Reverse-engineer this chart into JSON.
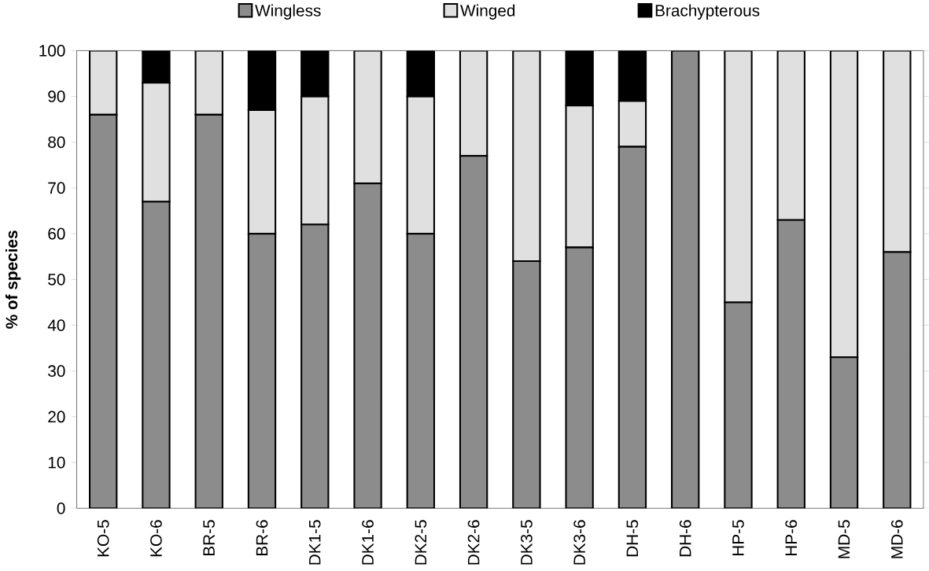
{
  "chart_data": {
    "type": "bar",
    "stacked": true,
    "ylabel": "% of species",
    "categories": [
      "KO-5",
      "KO-6",
      "BR-5",
      "BR-6",
      "DK1-5",
      "DK1-6",
      "DK2-5",
      "DK2-6",
      "DK3-5",
      "DK3-6",
      "DH-5",
      "DH-6",
      "HP-5",
      "HP-6",
      "MD-5",
      "MD-6"
    ],
    "series": [
      {
        "name": "Wingless",
        "color": "#8c8c8c",
        "values": [
          86,
          67,
          86,
          60,
          62,
          71,
          60,
          77,
          54,
          57,
          79,
          100,
          45,
          63,
          33,
          56
        ]
      },
      {
        "name": "Winged",
        "color": "#e0e0e0",
        "values": [
          14,
          26,
          14,
          27,
          28,
          29,
          30,
          23,
          46,
          31,
          10,
          0,
          55,
          37,
          67,
          44
        ]
      },
      {
        "name": "Brachypterous",
        "color": "#000000",
        "values": [
          0,
          7,
          0,
          13,
          10,
          0,
          10,
          0,
          0,
          12,
          11,
          0,
          0,
          0,
          0,
          0
        ]
      }
    ],
    "ylim": [
      0,
      100
    ],
    "yticks": [
      0,
      10,
      20,
      30,
      40,
      50,
      60,
      70,
      80,
      90,
      100
    ],
    "legend": "top",
    "grid": false
  }
}
